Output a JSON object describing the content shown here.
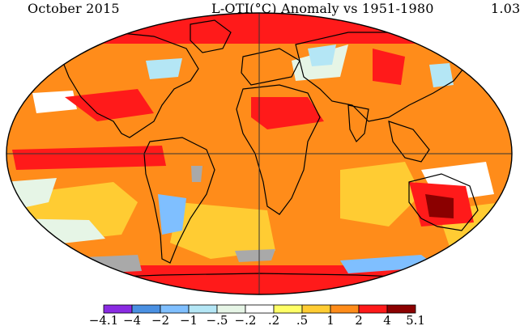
{
  "header": {
    "date": "October 2015",
    "title": "L-OTI(°C) Anomaly vs 1951-1980",
    "global_mean": "1.03"
  },
  "legend": {
    "ticks": [
      "-4.1",
      "-4",
      "-2",
      "-1",
      "-.5",
      "-.2",
      ".2",
      ".5",
      "1",
      "2",
      "4",
      "5.1"
    ],
    "colors": [
      "#8a2be2",
      "#4a90e2",
      "#7fbfff",
      "#b4e6f5",
      "#e6f5e6",
      "#ffffff",
      "#ffff66",
      "#ffcc33",
      "#ff8c1a",
      "#ff1a1a",
      "#8b0000"
    ]
  },
  "map": {
    "palette": {
      "no_data": "#a9a9a9",
      "ocean_base": "#ff8c1a",
      "warm": "#ffcc33",
      "hot": "#ff1a1a",
      "very_hot": "#8b0000",
      "cool": "#e6f5e6",
      "cold": "#b4e6f5",
      "colder": "#7fbfff"
    }
  }
}
